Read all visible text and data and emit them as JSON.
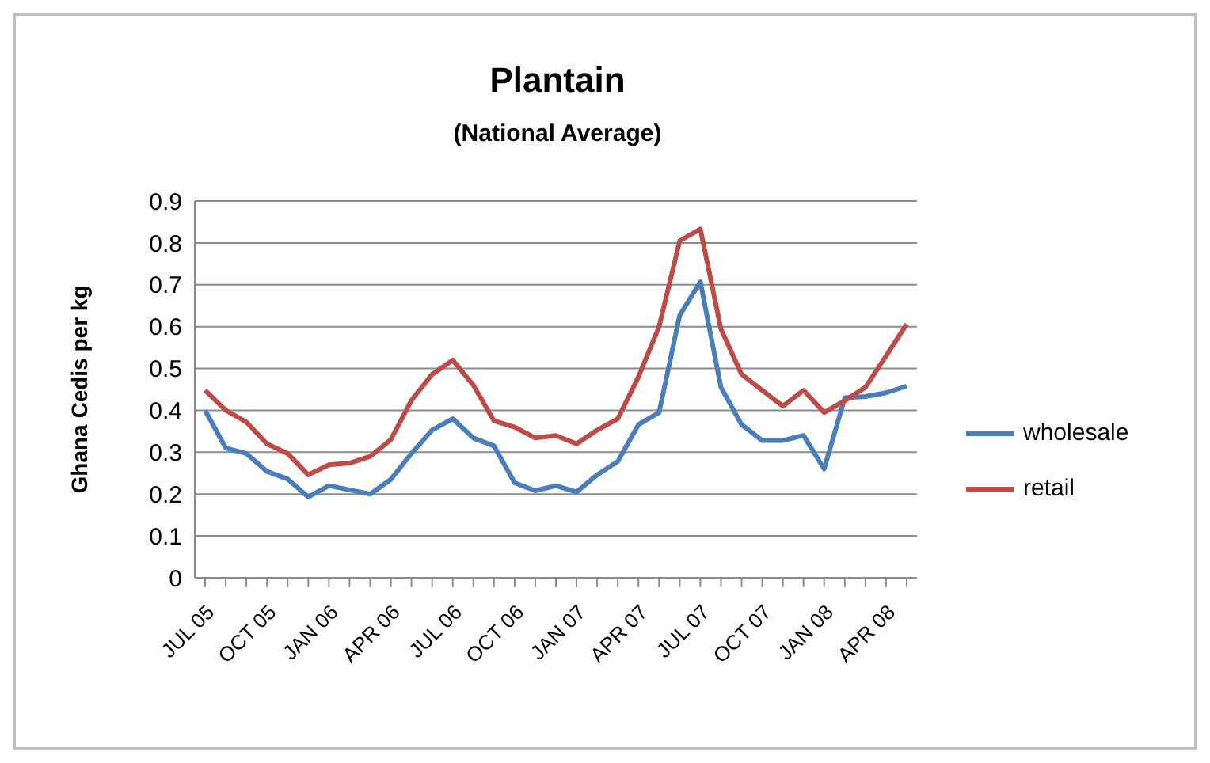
{
  "chart_data": {
    "type": "line",
    "title": "Plantain",
    "subtitle": "(National Average)",
    "ylabel": "Ghana Cedis per kg",
    "categories": [
      "JUL 05",
      null,
      null,
      "OCT 05",
      null,
      null,
      "JAN 06",
      null,
      null,
      "APR 06",
      null,
      null,
      "JUL 06",
      null,
      null,
      "OCT 06",
      null,
      null,
      "JAN 07",
      null,
      null,
      "APR 07",
      null,
      null,
      "JUL 07",
      null,
      null,
      "OCT 07",
      null,
      null,
      "JAN 08",
      null,
      null,
      "APR 08",
      null
    ],
    "series": [
      {
        "name": "wholesale",
        "color": "#4a7ebb",
        "values": [
          0.4,
          0.31,
          0.297,
          0.254,
          0.236,
          0.193,
          0.22,
          0.21,
          0.2,
          0.235,
          0.297,
          0.353,
          0.38,
          0.334,
          0.315,
          0.227,
          0.208,
          0.22,
          0.205,
          0.246,
          0.278,
          0.366,
          0.395,
          0.627,
          0.707,
          0.455,
          0.366,
          0.328,
          0.328,
          0.34,
          0.26,
          0.43,
          0.433,
          0.442,
          0.458
        ]
      },
      {
        "name": "retail",
        "color": "#be4b48",
        "values": [
          0.448,
          0.4,
          0.372,
          0.32,
          0.297,
          0.246,
          0.27,
          0.274,
          0.29,
          0.33,
          0.424,
          0.486,
          0.52,
          0.46,
          0.375,
          0.36,
          0.334,
          0.34,
          0.32,
          0.353,
          0.38,
          0.48,
          0.6,
          0.805,
          0.833,
          0.594,
          0.486,
          0.448,
          0.41,
          0.448,
          0.395,
          0.423,
          0.455,
          0.53,
          0.606
        ]
      }
    ],
    "ylim": [
      0,
      0.9
    ],
    "yticks": [
      0,
      0.1,
      0.2,
      0.3,
      0.4,
      0.5,
      0.6,
      0.7,
      0.8,
      0.9
    ],
    "grid": "y",
    "legend": "right",
    "marker": "none",
    "line_style": "solid"
  }
}
